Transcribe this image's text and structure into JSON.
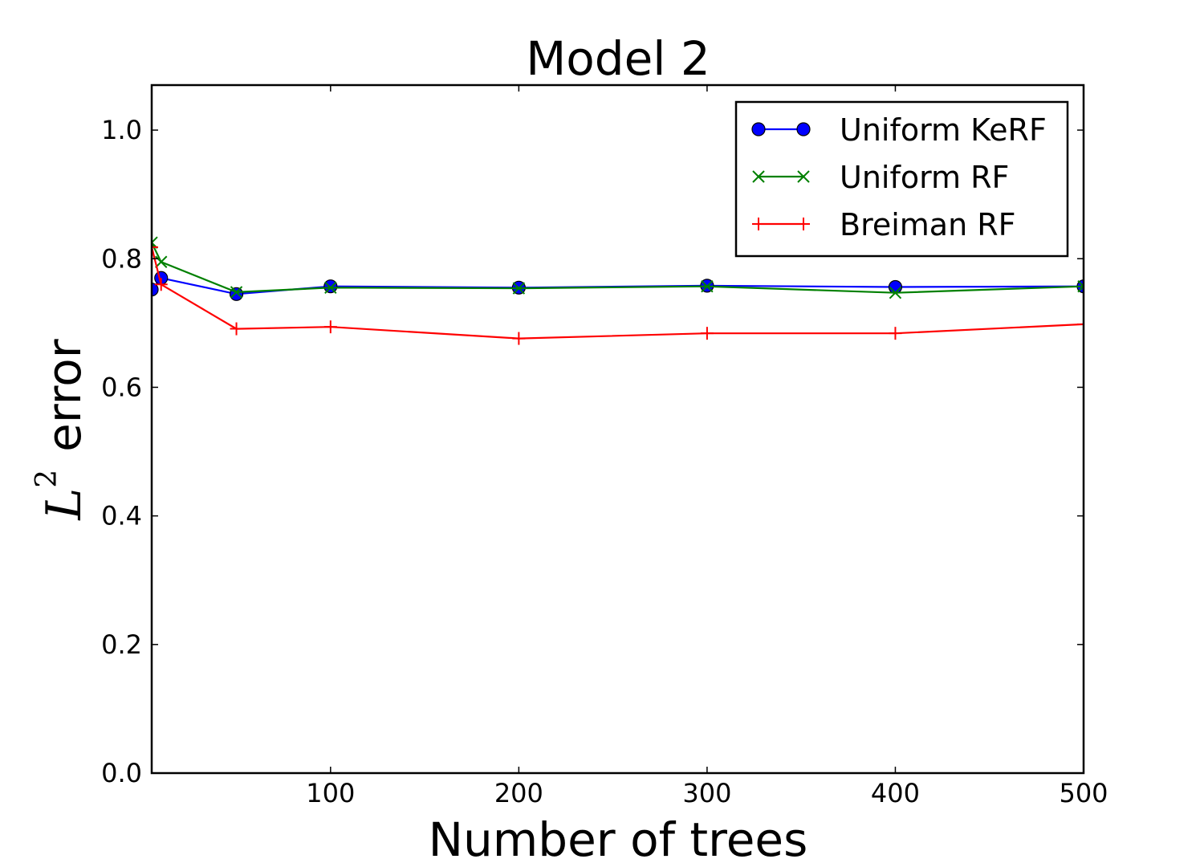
{
  "chart_data": {
    "type": "line",
    "title": "Model 2",
    "xlabel": "Number of trees",
    "ylabel": {
      "math": "L",
      "superscript": "2",
      "text": "error"
    },
    "xlim": [
      5,
      500
    ],
    "ylim": [
      0.0,
      1.07
    ],
    "xticks": [
      100,
      200,
      300,
      400,
      500
    ],
    "yticks": [
      0.0,
      0.2,
      0.4,
      0.6,
      0.8,
      1.0
    ],
    "xtick_labels": [
      "100",
      "200",
      "300",
      "400",
      "500"
    ],
    "ytick_labels": [
      "0.0",
      "0.2",
      "0.4",
      "0.6",
      "0.8",
      "1.0"
    ],
    "x": [
      5,
      10,
      50,
      100,
      200,
      300,
      400,
      500
    ],
    "series": [
      {
        "name": "Uniform KeRF",
        "color": "#0000ff",
        "marker": "circle",
        "values": [
          0.752,
          0.77,
          0.745,
          0.757,
          0.755,
          0.758,
          0.756,
          0.757
        ]
      },
      {
        "name": "Uniform RF",
        "color": "#008000",
        "marker": "x",
        "values": [
          0.825,
          0.795,
          0.748,
          0.755,
          0.754,
          0.757,
          0.747,
          0.757
        ]
      },
      {
        "name": "Breiman RF",
        "color": "#ff0000",
        "marker": "plus",
        "values": [
          0.818,
          0.76,
          0.691,
          0.694,
          0.676,
          0.684,
          0.684,
          0.698
        ]
      }
    ],
    "grid": false,
    "legend_position": "top-right"
  }
}
